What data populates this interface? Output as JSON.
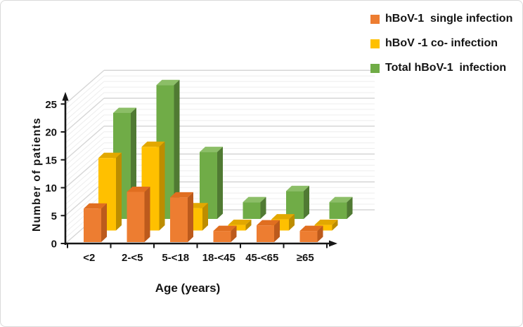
{
  "figure": {
    "background": "#ffffff",
    "border_color": "#d9d9d9",
    "text_color": "#141414"
  },
  "chart_data": {
    "type": "bar",
    "subtype": "3d-clustered-column",
    "title": "",
    "xlabel": "Age (years)",
    "ylabel": "Number of patients",
    "categories": [
      "<2",
      "2-<5",
      "5-<18",
      "18-<45",
      "45-<65",
      "≥65"
    ],
    "series": [
      {
        "name": "hBoV-1  single infection",
        "values": [
          6,
          9,
          8,
          2,
          3,
          2
        ],
        "color": "#ED7D31",
        "color_top": "#E06E20",
        "color_side": "#BC5A1C"
      },
      {
        "name": "hBoV -1 co- infection",
        "values": [
          13,
          15,
          4,
          1,
          2,
          1
        ],
        "color": "#FFC000",
        "color_top": "#E2A800",
        "color_side": "#BD8D00"
      },
      {
        "name": "Total hBoV-1  infection",
        "values": [
          19,
          24,
          12,
          3,
          5,
          3
        ],
        "color": "#70AC47",
        "color_top": "#8CBE67",
        "color_side": "#507A33"
      }
    ],
    "ylim": [
      0,
      25
    ],
    "yticks": [
      0,
      5,
      10,
      15,
      20,
      25
    ],
    "grid": "minor-every-1-major-every-5",
    "legend_position": "top-right",
    "axis_color": "#161616",
    "gridline_minor_color": "#ededed",
    "gridline_major_color": "#d6d6d6"
  }
}
